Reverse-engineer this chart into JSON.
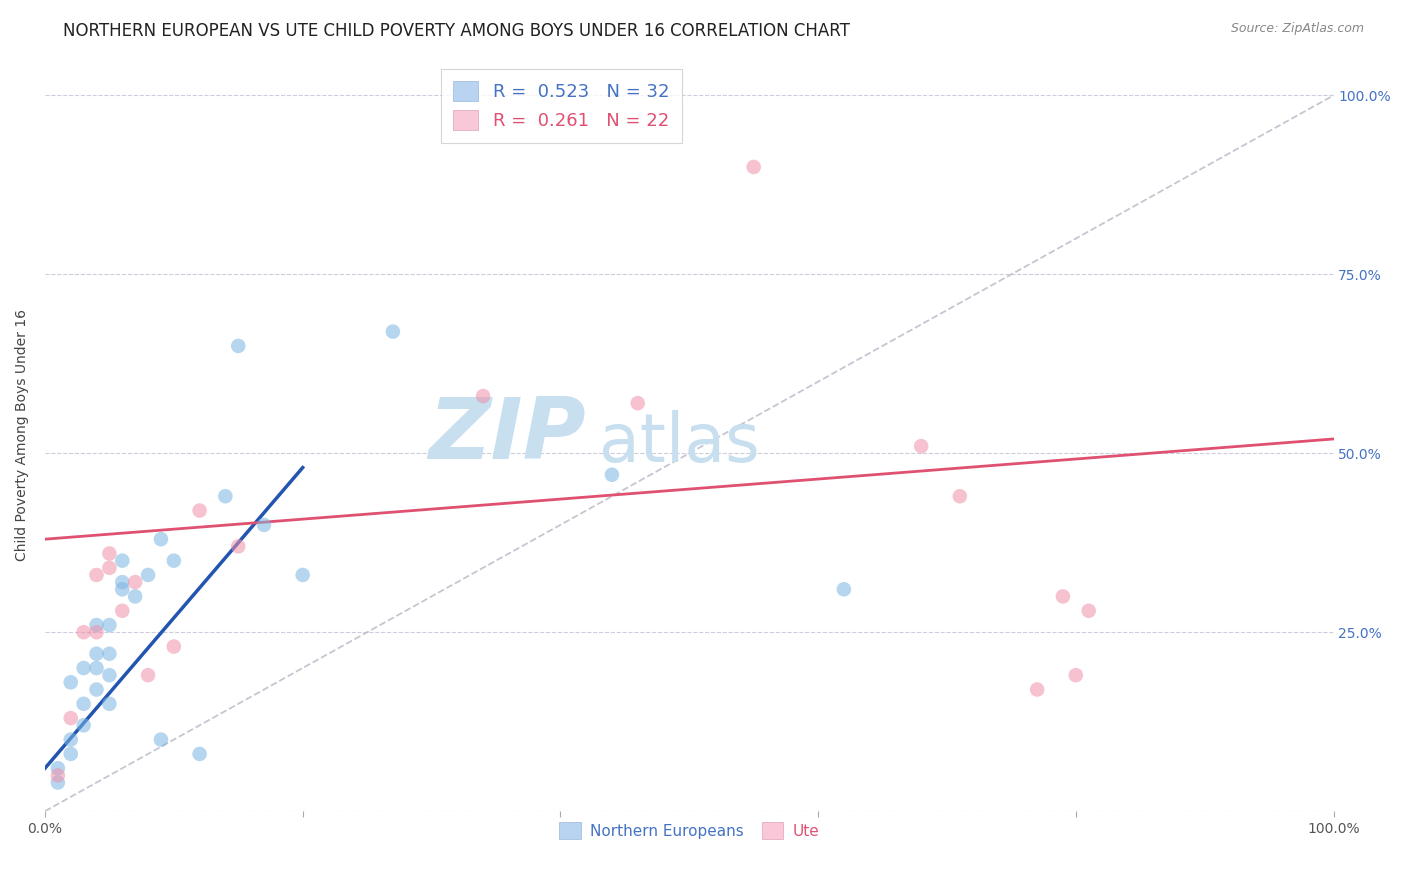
{
  "title": "NORTHERN EUROPEAN VS UTE CHILD POVERTY AMONG BOYS UNDER 16 CORRELATION CHART",
  "source": "Source: ZipAtlas.com",
  "ylabel": "Child Poverty Among Boys Under 16",
  "xlim": [
    0.0,
    1.0
  ],
  "ylim": [
    0.0,
    1.05
  ],
  "xticks": [
    0.0,
    0.2,
    0.4,
    0.6,
    0.8,
    1.0
  ],
  "xticklabels": [
    "0.0%",
    "",
    "",
    "",
    "",
    "100.0%"
  ],
  "yticks": [
    0.0,
    0.25,
    0.5,
    0.75,
    1.0
  ],
  "yticklabels_right": [
    "",
    "25.0%",
    "50.0%",
    "75.0%",
    "100.0%"
  ],
  "legend_label_blue": "R =  0.523   N = 32",
  "legend_label_pink": "R =  0.261   N = 22",
  "blue_scatter_x": [
    0.01,
    0.01,
    0.02,
    0.02,
    0.02,
    0.03,
    0.03,
    0.03,
    0.04,
    0.04,
    0.04,
    0.04,
    0.05,
    0.05,
    0.05,
    0.05,
    0.06,
    0.06,
    0.06,
    0.07,
    0.08,
    0.09,
    0.09,
    0.1,
    0.12,
    0.14,
    0.15,
    0.17,
    0.2,
    0.27,
    0.44,
    0.62
  ],
  "blue_scatter_y": [
    0.04,
    0.06,
    0.08,
    0.1,
    0.18,
    0.12,
    0.15,
    0.2,
    0.17,
    0.2,
    0.22,
    0.26,
    0.15,
    0.19,
    0.22,
    0.26,
    0.31,
    0.32,
    0.35,
    0.3,
    0.33,
    0.38,
    0.1,
    0.35,
    0.08,
    0.44,
    0.65,
    0.4,
    0.33,
    0.67,
    0.47,
    0.31
  ],
  "pink_scatter_x": [
    0.01,
    0.02,
    0.03,
    0.04,
    0.04,
    0.05,
    0.05,
    0.06,
    0.07,
    0.08,
    0.1,
    0.12,
    0.15,
    0.34,
    0.46,
    0.55,
    0.68,
    0.71,
    0.77,
    0.79,
    0.8,
    0.81
  ],
  "pink_scatter_y": [
    0.05,
    0.13,
    0.25,
    0.25,
    0.33,
    0.34,
    0.36,
    0.28,
    0.32,
    0.19,
    0.23,
    0.42,
    0.37,
    0.58,
    0.57,
    0.9,
    0.51,
    0.44,
    0.17,
    0.3,
    0.19,
    0.28
  ],
  "blue_line_x": [
    0.0,
    0.2
  ],
  "blue_line_y": [
    0.06,
    0.48
  ],
  "pink_line_x": [
    0.0,
    1.0
  ],
  "pink_line_y": [
    0.38,
    0.52
  ],
  "diag_line_x": [
    0.0,
    1.0
  ],
  "diag_line_y": [
    0.0,
    1.0
  ],
  "scatter_size": 110,
  "scatter_alpha": 0.55,
  "blue_color": "#7ab4e0",
  "pink_color": "#f090a8",
  "blue_line_color": "#2255b0",
  "pink_line_color": "#e05070",
  "diag_color": "#b8b8c8",
  "background_color": "#ffffff",
  "grid_color": "#ccccdd",
  "watermark_zip": "ZIP",
  "watermark_atlas": "atlas",
  "watermark_color_zip": "#c8dff0",
  "watermark_color_atlas": "#c8dff0",
  "title_fontsize": 12,
  "axis_label_fontsize": 10,
  "tick_fontsize": 10,
  "right_tick_color": "#4472c4"
}
